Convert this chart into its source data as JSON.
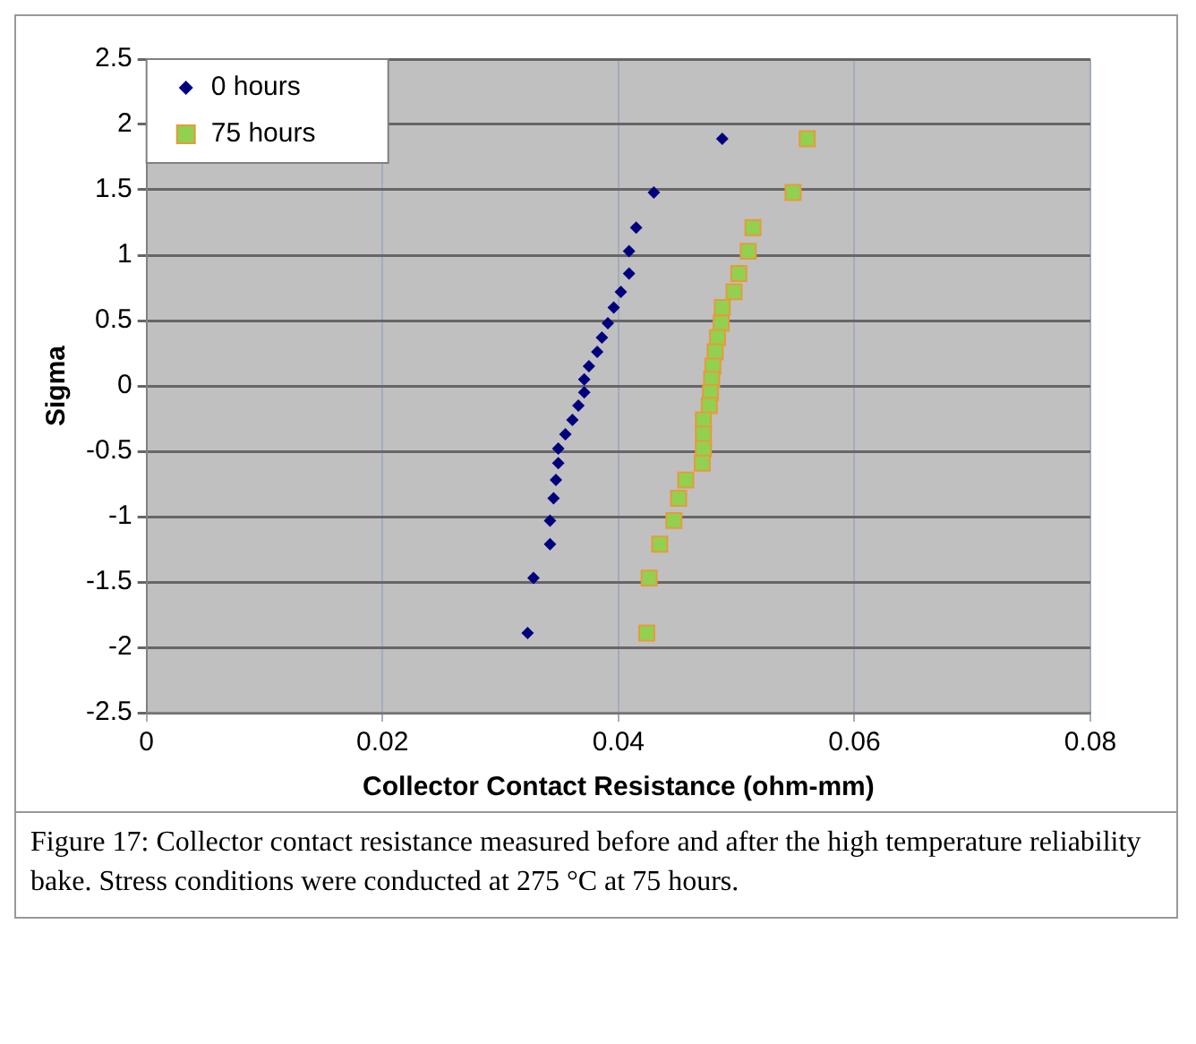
{
  "chart_data": {
    "type": "scatter",
    "xlabel": "Collector Contact Resistance (ohm-mm)",
    "ylabel": "Sigma",
    "xlim": [
      0,
      0.08
    ],
    "xticks": [
      0,
      0.02,
      0.04,
      0.06,
      0.08
    ],
    "ylim": [
      -2.5,
      2.5
    ],
    "yticks": [
      -2.5,
      -2,
      -1.5,
      -1,
      -0.5,
      0,
      0.5,
      1,
      1.5,
      2,
      2.5
    ],
    "grid": true,
    "legend": "top left",
    "series": [
      {
        "name": "0 hours",
        "color": "#00007f",
        "marker": "diamond",
        "x": [
          0.0488,
          0.043,
          0.0415,
          0.0409,
          0.0409,
          0.0402,
          0.0396,
          0.0391,
          0.0386,
          0.0382,
          0.0375,
          0.0371,
          0.0371,
          0.0366,
          0.0361,
          0.0355,
          0.0349,
          0.0349,
          0.0347,
          0.0345,
          0.0342,
          0.0342,
          0.0328,
          0.0323
        ],
        "values": [
          1.89,
          1.48,
          1.21,
          1.03,
          0.86,
          0.72,
          0.6,
          0.48,
          0.37,
          0.26,
          0.15,
          0.05,
          -0.05,
          -0.15,
          -0.26,
          -0.37,
          -0.48,
          -0.59,
          -0.72,
          -0.86,
          -1.03,
          -1.21,
          -1.47,
          -1.89
        ]
      },
      {
        "name": "75 hours",
        "color": "#92d050",
        "marker": "square",
        "x": [
          0.056,
          0.0548,
          0.0514,
          0.051,
          0.0502,
          0.0498,
          0.0488,
          0.0487,
          0.0484,
          0.0482,
          0.048,
          0.0479,
          0.0478,
          0.0477,
          0.0472,
          0.0472,
          0.0472,
          0.0471,
          0.0457,
          0.0451,
          0.0447,
          0.0435,
          0.0426,
          0.0424
        ],
        "values": [
          1.89,
          1.48,
          1.21,
          1.03,
          0.86,
          0.72,
          0.6,
          0.48,
          0.37,
          0.26,
          0.15,
          0.05,
          -0.05,
          -0.15,
          -0.26,
          -0.37,
          -0.48,
          -0.59,
          -0.72,
          -0.86,
          -1.03,
          -1.21,
          -1.47,
          -1.89
        ]
      }
    ],
    "annotations": [
      "Figure 17: Collector contact resistance measured before and after the high temperature reliability bake. Stress conditions were conducted at 275 °C at 75 hours."
    ]
  }
}
